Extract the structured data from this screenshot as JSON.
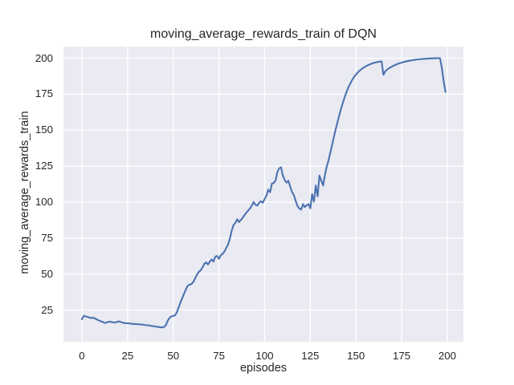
{
  "text_color": "#262626",
  "chart_data": {
    "type": "line",
    "title": "moving_average_rewards_train of DQN",
    "xlabel": "episodes",
    "ylabel": "moving_average_rewards_train",
    "legend": false,
    "grid": true,
    "plot_bg": "#eaeaf2",
    "grid_color": "#ffffff",
    "line_color": "#4c72b0",
    "x_ticks": [
      0,
      25,
      50,
      75,
      100,
      125,
      150,
      175,
      200
    ],
    "y_ticks": [
      25,
      50,
      75,
      100,
      125,
      150,
      175,
      200
    ],
    "xlim": [
      -10.1,
      208.8
    ],
    "ylim": [
      3.0,
      208.1
    ],
    "x": {
      "start": 0,
      "step": 1
    },
    "series": [
      {
        "name": "moving_average_rewards_train",
        "values": [
          18.6,
          21.0,
          20.6,
          20.2,
          19.8,
          19.4,
          19.7,
          19.2,
          18.6,
          17.9,
          17.4,
          16.9,
          16.4,
          16.0,
          16.6,
          16.9,
          16.7,
          16.5,
          16.3,
          16.6,
          17.1,
          16.8,
          16.4,
          16.0,
          15.9,
          15.8,
          15.7,
          15.5,
          15.4,
          15.3,
          15.2,
          15.1,
          15.0,
          14.9,
          14.7,
          14.5,
          14.4,
          14.2,
          14.0,
          13.8,
          13.6,
          13.4,
          13.2,
          13.0,
          12.9,
          13.3,
          14.6,
          17.6,
          19.6,
          20.6,
          20.9,
          21.4,
          23.6,
          27.0,
          30.4,
          33.6,
          36.6,
          39.6,
          42.0,
          42.6,
          43.1,
          44.6,
          47.1,
          49.6,
          51.6,
          52.6,
          54.6,
          57.1,
          58.1,
          56.6,
          58.6,
          60.1,
          58.7,
          62.1,
          62.6,
          60.6,
          63.1,
          64.1,
          65.6,
          68.1,
          70.6,
          74.6,
          80.1,
          84.1,
          85.6,
          88.1,
          86.1,
          87.6,
          89.1,
          91.1,
          92.6,
          94.1,
          95.6,
          97.6,
          100.1,
          98.1,
          97.6,
          99.6,
          100.6,
          99.6,
          102.1,
          104.6,
          108.6,
          106.9,
          112.9,
          113.3,
          115.0,
          121.0,
          123.5,
          124.1,
          118.5,
          115.3,
          113.5,
          114.8,
          110.8,
          107.0,
          104.8,
          100.8,
          97.3,
          95.5,
          94.8,
          98.5,
          96.5,
          97.8,
          98.5,
          95.7,
          105.5,
          100.3,
          111.5,
          104.0,
          118.5,
          115.0,
          111.5,
          119.0,
          124.6,
          129.1,
          134.6,
          140.1,
          145.6,
          151.1,
          156.1,
          161.1,
          165.6,
          169.6,
          173.6,
          177.1,
          180.1,
          182.6,
          185.1,
          187.1,
          188.6,
          190.1,
          191.3,
          192.4,
          193.3,
          194.1,
          194.8,
          195.4,
          195.9,
          196.4,
          196.8,
          197.1,
          197.4,
          197.6,
          197.8,
          188.5,
          190.8,
          192.0,
          192.9,
          193.7,
          194.4,
          195.0,
          195.6,
          196.1,
          196.5,
          196.9,
          197.3,
          197.6,
          197.9,
          198.2,
          198.4,
          198.6,
          198.8,
          199.0,
          199.2,
          199.3,
          199.4,
          199.5,
          199.6,
          199.7,
          199.8,
          199.8,
          199.9,
          199.9,
          200.0,
          200.0,
          199.9,
          193.0,
          184.0,
          176.5
        ]
      }
    ]
  }
}
